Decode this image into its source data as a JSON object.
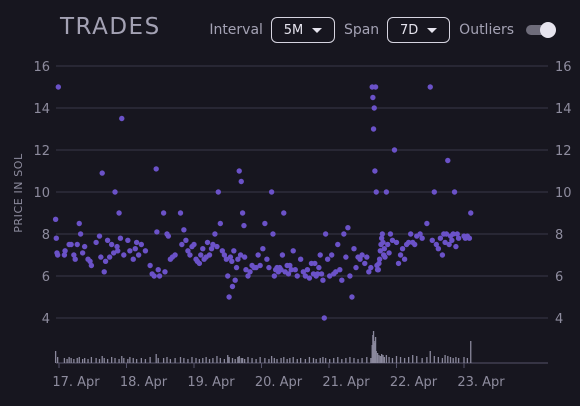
{
  "header": {
    "title": "TRADES",
    "interval_label": "Interval",
    "interval_value": "5M",
    "span_label": "Span",
    "span_value": "7D",
    "outliers_label": "Outliers",
    "outliers_on": false
  },
  "chart_data": {
    "type": "scatter",
    "title": "TRADES",
    "ylabel": "PRICE IN SOL",
    "xlabel": "",
    "ylim": [
      3,
      16.5
    ],
    "yticks": [
      4,
      6,
      8,
      10,
      12,
      14,
      16
    ],
    "xlim": [
      "2024-04-16T12:00",
      "2024-04-24T02:00"
    ],
    "xtick_labels": [
      "17. Apr",
      "18. Apr",
      "19. Apr",
      "20. Apr",
      "21. Apr",
      "22. Apr",
      "23. Apr"
    ],
    "grid": true,
    "colors": {
      "points": "#6b52c8",
      "grid": "#3a3848",
      "volume": "#8a889c"
    },
    "series": [
      {
        "values": [
          [
            0.45,
            8.7
          ],
          [
            0.46,
            7.8
          ],
          [
            0.47,
            7.1
          ],
          [
            0.48,
            7.0
          ],
          [
            0.49,
            15.0
          ],
          [
            0.58,
            7.0
          ],
          [
            0.59,
            7.2
          ],
          [
            0.65,
            7.5
          ],
          [
            0.68,
            7.5
          ],
          [
            0.72,
            7.0
          ],
          [
            0.74,
            6.8
          ],
          [
            0.77,
            7.5
          ],
          [
            0.8,
            8.5
          ],
          [
            0.82,
            8.0
          ],
          [
            0.85,
            7.1
          ],
          [
            0.88,
            7.4
          ],
          [
            0.93,
            6.8
          ],
          [
            0.96,
            6.7
          ],
          [
            0.98,
            6.5
          ],
          [
            1.05,
            7.6
          ],
          [
            1.1,
            7.9
          ],
          [
            1.12,
            6.9
          ],
          [
            1.14,
            10.9
          ],
          [
            1.17,
            6.2
          ],
          [
            1.19,
            6.7
          ],
          [
            1.22,
            7.7
          ],
          [
            1.25,
            6.9
          ],
          [
            1.28,
            7.5
          ],
          [
            1.31,
            7.1
          ],
          [
            1.33,
            10.0
          ],
          [
            1.36,
            7.4
          ],
          [
            1.37,
            7.2
          ],
          [
            1.39,
            9.0
          ],
          [
            1.41,
            7.8
          ],
          [
            1.43,
            13.5
          ],
          [
            1.46,
            7.0
          ],
          [
            1.52,
            7.7
          ],
          [
            1.55,
            7.2
          ],
          [
            1.6,
            6.8
          ],
          [
            1.63,
            7.3
          ],
          [
            1.65,
            7.6
          ],
          [
            1.68,
            7.0
          ],
          [
            1.72,
            7.5
          ],
          [
            1.78,
            7.2
          ],
          [
            1.85,
            6.5
          ],
          [
            1.88,
            6.1
          ],
          [
            1.91,
            6.0
          ],
          [
            1.94,
            11.1
          ],
          [
            1.95,
            8.1
          ],
          [
            1.97,
            6.3
          ],
          [
            1.99,
            6.0
          ],
          [
            2.05,
            9.0
          ],
          [
            2.07,
            6.2
          ],
          [
            2.1,
            8.0
          ],
          [
            2.12,
            7.9
          ],
          [
            2.15,
            6.8
          ],
          [
            2.18,
            6.9
          ],
          [
            2.22,
            7.0
          ],
          [
            2.3,
            9.0
          ],
          [
            2.32,
            7.5
          ],
          [
            2.35,
            8.2
          ],
          [
            2.38,
            7.7
          ],
          [
            2.41,
            7.2
          ],
          [
            2.44,
            7.0
          ],
          [
            2.47,
            7.4
          ],
          [
            2.5,
            7.5
          ],
          [
            2.53,
            6.8
          ],
          [
            2.55,
            6.7
          ],
          [
            2.58,
            6.6
          ],
          [
            2.6,
            7.0
          ],
          [
            2.63,
            7.3
          ],
          [
            2.65,
            6.8
          ],
          [
            2.68,
            6.9
          ],
          [
            2.7,
            7.6
          ],
          [
            2.73,
            7.0
          ],
          [
            2.76,
            7.3
          ],
          [
            2.78,
            7.5
          ],
          [
            2.81,
            8.0
          ],
          [
            2.84,
            7.4
          ],
          [
            2.86,
            10.0
          ],
          [
            2.89,
            8.5
          ],
          [
            2.92,
            7.2
          ],
          [
            2.95,
            7.0
          ],
          [
            2.98,
            6.8
          ],
          [
            3.0,
            6.0
          ],
          [
            3.02,
            5.0
          ],
          [
            3.04,
            6.9
          ],
          [
            3.06,
            6.7
          ],
          [
            3.07,
            5.5
          ],
          [
            3.09,
            7.2
          ],
          [
            3.11,
            5.8
          ],
          [
            3.13,
            6.4
          ],
          [
            3.15,
            6.8
          ],
          [
            3.17,
            11.0
          ],
          [
            3.19,
            7.0
          ],
          [
            3.2,
            10.5
          ],
          [
            3.22,
            9.0
          ],
          [
            3.24,
            8.4
          ],
          [
            3.25,
            6.9
          ],
          [
            3.27,
            6.3
          ],
          [
            3.3,
            6.0
          ],
          [
            3.33,
            6.2
          ],
          [
            3.36,
            6.5
          ],
          [
            3.39,
            6.4
          ],
          [
            3.42,
            6.4
          ],
          [
            3.45,
            7.0
          ],
          [
            3.48,
            6.5
          ],
          [
            3.52,
            7.3
          ],
          [
            3.55,
            8.5
          ],
          [
            3.58,
            6.8
          ],
          [
            3.61,
            6.4
          ],
          [
            3.65,
            10.0
          ],
          [
            3.67,
            8.0
          ],
          [
            3.69,
            6.0
          ],
          [
            3.71,
            6.3
          ],
          [
            3.73,
            6.4
          ],
          [
            3.75,
            6.2
          ],
          [
            3.77,
            6.4
          ],
          [
            3.79,
            6.3
          ],
          [
            3.81,
            7.0
          ],
          [
            3.83,
            9.0
          ],
          [
            3.85,
            6.2
          ],
          [
            3.88,
            6.5
          ],
          [
            3.9,
            6.1
          ],
          [
            3.92,
            6.5
          ],
          [
            3.94,
            6.3
          ],
          [
            3.97,
            7.2
          ],
          [
            4.0,
            6.3
          ],
          [
            4.03,
            6.0
          ],
          [
            4.08,
            6.8
          ],
          [
            4.12,
            6.2
          ],
          [
            4.15,
            6.0
          ],
          [
            4.18,
            6.3
          ],
          [
            4.21,
            5.9
          ],
          [
            4.24,
            6.6
          ],
          [
            4.27,
            6.1
          ],
          [
            4.29,
            6.6
          ],
          [
            4.31,
            6.0
          ],
          [
            4.33,
            6.1
          ],
          [
            4.35,
            6.4
          ],
          [
            4.37,
            7.0
          ],
          [
            4.39,
            6.1
          ],
          [
            4.41,
            5.8
          ],
          [
            4.43,
            4.0
          ],
          [
            4.45,
            8.0
          ],
          [
            4.48,
            6.8
          ],
          [
            4.51,
            6.0
          ],
          [
            4.54,
            7.0
          ],
          [
            4.57,
            6.1
          ],
          [
            4.6,
            6.2
          ],
          [
            4.63,
            7.5
          ],
          [
            4.66,
            6.3
          ],
          [
            4.69,
            5.8
          ],
          [
            4.72,
            8.0
          ],
          [
            4.75,
            6.9
          ],
          [
            4.78,
            8.3
          ],
          [
            4.81,
            6.0
          ],
          [
            4.84,
            5.0
          ],
          [
            4.87,
            7.3
          ],
          [
            4.9,
            6.4
          ],
          [
            4.93,
            6.9
          ],
          [
            4.96,
            6.8
          ],
          [
            4.99,
            7.0
          ],
          [
            5.03,
            6.6
          ],
          [
            5.06,
            6.9
          ],
          [
            5.09,
            6.2
          ],
          [
            5.12,
            6.4
          ],
          [
            5.14,
            15.0
          ],
          [
            5.15,
            14.5
          ],
          [
            5.16,
            13.0
          ],
          [
            5.17,
            14.0
          ],
          [
            5.18,
            11.0
          ],
          [
            5.19,
            15.0
          ],
          [
            5.2,
            10.0
          ],
          [
            5.21,
            6.5
          ],
          [
            5.22,
            6.3
          ],
          [
            5.23,
            6.3
          ],
          [
            5.24,
            6.6
          ],
          [
            5.25,
            6.8
          ],
          [
            5.26,
            7.2
          ],
          [
            5.27,
            7.5
          ],
          [
            5.28,
            7.8
          ],
          [
            5.29,
            8.0
          ],
          [
            5.3,
            7.6
          ],
          [
            5.31,
            7.0
          ],
          [
            5.32,
            7.3
          ],
          [
            5.33,
            6.9
          ],
          [
            5.35,
            10.0
          ],
          [
            5.37,
            7.5
          ],
          [
            5.39,
            7.1
          ],
          [
            5.41,
            8.0
          ],
          [
            5.44,
            7.7
          ],
          [
            5.47,
            12.0
          ],
          [
            5.5,
            7.6
          ],
          [
            5.53,
            6.6
          ],
          [
            5.56,
            7.0
          ],
          [
            5.59,
            7.3
          ],
          [
            5.62,
            6.8
          ],
          [
            5.65,
            7.5
          ],
          [
            5.68,
            7.6
          ],
          [
            5.71,
            8.0
          ],
          [
            5.74,
            7.6
          ],
          [
            5.77,
            7.5
          ],
          [
            5.8,
            7.9
          ],
          [
            5.85,
            8.0
          ],
          [
            5.88,
            7.8
          ],
          [
            5.95,
            8.5
          ],
          [
            6.0,
            15.0
          ],
          [
            6.03,
            7.7
          ],
          [
            6.06,
            10.0
          ],
          [
            6.09,
            7.5
          ],
          [
            6.12,
            7.3
          ],
          [
            6.15,
            7.8
          ],
          [
            6.18,
            7.0
          ],
          [
            6.2,
            8.0
          ],
          [
            6.22,
            7.6
          ],
          [
            6.24,
            8.0
          ],
          [
            6.26,
            11.5
          ],
          [
            6.28,
            7.5
          ],
          [
            6.3,
            7.9
          ],
          [
            6.32,
            7.7
          ],
          [
            6.34,
            8.0
          ],
          [
            6.36,
            10.0
          ],
          [
            6.38,
            7.4
          ],
          [
            6.4,
            8.0
          ],
          [
            6.42,
            7.8
          ],
          [
            6.5,
            7.9
          ],
          [
            6.52,
            7.8
          ],
          [
            6.55,
            7.9
          ],
          [
            6.58,
            7.8
          ],
          [
            6.6,
            9.0
          ]
        ]
      }
    ],
    "volume": {
      "days_since_start": [
        0.45,
        0.48,
        0.58,
        0.62,
        0.65,
        0.68,
        0.72,
        0.77,
        0.8,
        0.85,
        0.88,
        0.93,
        0.98,
        1.05,
        1.1,
        1.14,
        1.17,
        1.22,
        1.28,
        1.33,
        1.39,
        1.43,
        1.46,
        1.52,
        1.55,
        1.6,
        1.65,
        1.72,
        1.78,
        1.85,
        1.94,
        1.97,
        2.05,
        2.1,
        2.15,
        2.22,
        2.3,
        2.35,
        2.41,
        2.47,
        2.53,
        2.58,
        2.63,
        2.68,
        2.73,
        2.78,
        2.84,
        2.89,
        2.95,
        3.0,
        3.02,
        3.07,
        3.11,
        3.15,
        3.17,
        3.2,
        3.22,
        3.25,
        3.3,
        3.36,
        3.42,
        3.48,
        3.55,
        3.61,
        3.65,
        3.69,
        3.73,
        3.79,
        3.83,
        3.88,
        3.92,
        3.97,
        4.03,
        4.08,
        4.15,
        4.21,
        4.27,
        4.31,
        4.37,
        4.41,
        4.45,
        4.51,
        4.57,
        4.63,
        4.69,
        4.75,
        4.81,
        4.87,
        4.93,
        4.99,
        5.06,
        5.12,
        5.14,
        5.15,
        5.16,
        5.17,
        5.18,
        5.19,
        5.2,
        5.22,
        5.24,
        5.26,
        5.28,
        5.3,
        5.32,
        5.35,
        5.39,
        5.44,
        5.5,
        5.56,
        5.62,
        5.68,
        5.74,
        5.8,
        5.88,
        5.95,
        6.0,
        6.06,
        6.12,
        6.18,
        6.22,
        6.26,
        6.3,
        6.34,
        6.38,
        6.42,
        6.5,
        6.55,
        6.6
      ],
      "heights": [
        12,
        6,
        5,
        4,
        6,
        5,
        4,
        5,
        6,
        4,
        5,
        4,
        6,
        5,
        4,
        7,
        5,
        4,
        6,
        5,
        4,
        7,
        5,
        4,
        6,
        5,
        4,
        5,
        4,
        6,
        9,
        5,
        5,
        6,
        4,
        5,
        6,
        5,
        4,
        6,
        5,
        4,
        5,
        6,
        4,
        5,
        7,
        5,
        4,
        8,
        6,
        5,
        4,
        6,
        7,
        5,
        5,
        4,
        6,
        5,
        4,
        6,
        5,
        4,
        7,
        5,
        4,
        5,
        6,
        4,
        5,
        6,
        4,
        5,
        4,
        6,
        5,
        4,
        5,
        6,
        5,
        4,
        5,
        6,
        4,
        5,
        6,
        5,
        4,
        5,
        6,
        5,
        18,
        28,
        32,
        22,
        20,
        26,
        12,
        10,
        8,
        7,
        9,
        8,
        6,
        8,
        6,
        5,
        7,
        6,
        5,
        6,
        8,
        7,
        5,
        6,
        12,
        7,
        6,
        5,
        8,
        7,
        6,
        5,
        6,
        5,
        6,
        5,
        22
      ]
    }
  }
}
